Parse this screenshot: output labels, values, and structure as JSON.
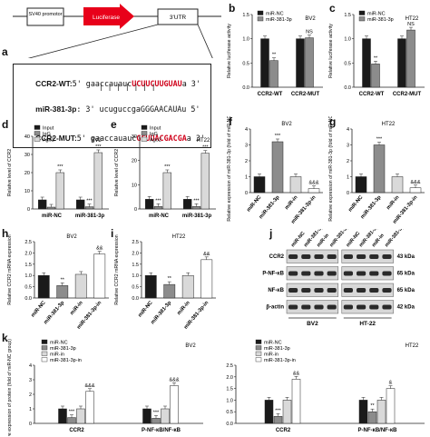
{
  "panels": {
    "a": "a",
    "b": "b",
    "c": "c",
    "d": "d",
    "e": "e",
    "f": "f",
    "g": "g",
    "h": "h",
    "i": "i",
    "j": "j",
    "k": "k"
  },
  "construct": {
    "promoter": "SV40 promotor",
    "gene": "Luciferase",
    "utr": "3'UTR",
    "rows": [
      {
        "label": "CCR2-WT:",
        "pre": "5' gaaccauauc",
        "highlight": "UCUUCUUGUAU",
        "post": "a 3'"
      },
      {
        "label": "miR-381-3p",
        "pre": ": 3' ucuguccgaGGGAACAUAu 5'",
        "highlight": "",
        "post": ""
      },
      {
        "label": "CCR2-MUT:",
        "pre": "5' gaaccauauc",
        "highlight": "GCUUACGACGA",
        "post": "a 3'"
      }
    ],
    "pair_bars": "| | | | | | |"
  },
  "colors": {
    "black": "#1a1a1a",
    "gray": "#8c8c8c",
    "lightgray": "#d9d9d9",
    "white": "#ffffff",
    "red": "#e8001a"
  },
  "chart_data": [
    {
      "id": "b",
      "type": "bar",
      "cell": "BV2",
      "ylabel": "Relative luciferase activity",
      "ylim": [
        0,
        1.5
      ],
      "ticks": [
        "0.0",
        "0.5",
        "1.0",
        "1.5"
      ],
      "categories": [
        "CCR2-WT",
        "CCR2-MUT"
      ],
      "series": [
        {
          "name": "miR-NC",
          "values": [
            1.0,
            1.0
          ]
        },
        {
          "name": "miR-381-3p",
          "values": [
            0.55,
            1.02
          ]
        }
      ],
      "annotations": [
        {
          "group": 0,
          "series": 1,
          "text": "**"
        },
        {
          "group": 1,
          "series": 1,
          "text": "NS"
        }
      ]
    },
    {
      "id": "c",
      "type": "bar",
      "cell": "HT22",
      "ylabel": "Relative luciferase activity",
      "ylim": [
        0,
        1.5
      ],
      "ticks": [
        "0.0",
        "0.5",
        "1.0",
        "1.5"
      ],
      "categories": [
        "CCR2-WT",
        "CCR2-MUT"
      ],
      "series": [
        {
          "name": "miR-NC",
          "values": [
            1.0,
            1.0
          ]
        },
        {
          "name": "miR-381-3p",
          "values": [
            0.48,
            1.18
          ]
        }
      ],
      "annotations": [
        {
          "group": 0,
          "series": 1,
          "text": "**"
        },
        {
          "group": 1,
          "series": 1,
          "text": "NS"
        }
      ]
    },
    {
      "id": "d",
      "type": "bar",
      "cell": "BV2",
      "ylabel": "Relative level of CCR2",
      "ylim": [
        0,
        40
      ],
      "ticks": [
        "0",
        "10",
        "20",
        "30",
        "40"
      ],
      "categories": [
        "miR-NC",
        "miR-381-3p"
      ],
      "series": [
        {
          "name": "Input",
          "values": [
            5,
            5
          ]
        },
        {
          "name": "IgG",
          "values": [
            1,
            1.2
          ]
        },
        {
          "name": "Ago2",
          "values": [
            20,
            31
          ]
        }
      ],
      "annotations": [
        {
          "group": 0,
          "series": 2,
          "text": "***"
        },
        {
          "group": 1,
          "series": 2,
          "text": "***"
        },
        {
          "group": 1,
          "series": 1,
          "text": "***"
        }
      ]
    },
    {
      "id": "e",
      "type": "bar",
      "cell": "HT22",
      "ylabel": "Relative level of CCR2",
      "ylim": [
        0,
        30
      ],
      "ticks": [
        "0",
        "10",
        "20",
        "30"
      ],
      "categories": [
        "miR-NC",
        "miR-381-3p"
      ],
      "series": [
        {
          "name": "Input",
          "values": [
            4,
            4
          ]
        },
        {
          "name": "IgG",
          "values": [
            1,
            1
          ]
        },
        {
          "name": "Ago2",
          "values": [
            15,
            23
          ]
        }
      ],
      "annotations": [
        {
          "group": 0,
          "series": 1,
          "text": "***"
        },
        {
          "group": 0,
          "series": 2,
          "text": "***"
        },
        {
          "group": 1,
          "series": 1,
          "text": "***"
        },
        {
          "group": 1,
          "series": 2,
          "text": "***"
        }
      ]
    },
    {
      "id": "f",
      "type": "bar",
      "cell": "BV2",
      "ylabel": "Relative expression of miR-381-3p (fold of miR-NC group)",
      "ylim": [
        0,
        4
      ],
      "ticks": [
        "0",
        "1",
        "2",
        "3",
        "4"
      ],
      "categories": [
        "miR-NC",
        "miR-381-3p",
        "miR-in",
        "miR-381-3p-in"
      ],
      "values": [
        1.0,
        3.2,
        1.0,
        0.25
      ],
      "annotations": [
        "",
        "***",
        "",
        "&&&"
      ]
    },
    {
      "id": "g",
      "type": "bar",
      "cell": "HT22",
      "ylabel": "Relative expression of miR-381-3p (fold of miR-NC group)",
      "ylim": [
        0,
        4
      ],
      "ticks": [
        "0",
        "1",
        "2",
        "3",
        "4"
      ],
      "categories": [
        "miR-NC",
        "miR-381-3p",
        "miR-in",
        "miR-381-3p-in"
      ],
      "values": [
        1.0,
        3.0,
        1.0,
        0.3
      ],
      "annotations": [
        "",
        "***",
        "",
        "&&&"
      ]
    },
    {
      "id": "h",
      "type": "bar",
      "cell": "BV2",
      "ylabel": "Relative CCR2 mRNA expression",
      "ylim": [
        0,
        2.5
      ],
      "ticks": [
        "0.0",
        "0.5",
        "1.0",
        "1.5",
        "2.0",
        "2.5"
      ],
      "categories": [
        "miR-NC",
        "miR-381-3p",
        "miR-in",
        "miR-381-3p-in"
      ],
      "values": [
        1.0,
        0.55,
        1.05,
        1.95
      ],
      "annotations": [
        "",
        "**",
        "",
        "&&"
      ]
    },
    {
      "id": "i",
      "type": "bar",
      "cell": "HT22",
      "ylabel": "Relative CCR2 mRNA expression",
      "ylim": [
        0,
        2.5
      ],
      "ticks": [
        "0.0",
        "0.5",
        "1.0",
        "1.5",
        "2.0",
        "2.5"
      ],
      "categories": [
        "miR-NC",
        "miR-381-3p",
        "miR-in",
        "miR-381-3p-in"
      ],
      "values": [
        1.0,
        0.6,
        1.0,
        1.7
      ],
      "annotations": [
        "",
        "**",
        "",
        "&&"
      ]
    },
    {
      "id": "k1",
      "type": "bar",
      "cell": "BV2",
      "ylabel": "Relative expression of protein (fold of miR-NC group)",
      "ylim": [
        0,
        4
      ],
      "ticks": [
        "0",
        "1",
        "2",
        "3",
        "4"
      ],
      "categories": [
        "CCR2",
        "P-NF-κB/NF-κB"
      ],
      "series": [
        {
          "name": "miR-NC",
          "values": [
            1.0,
            1.0
          ]
        },
        {
          "name": "miR-381-3p",
          "values": [
            0.4,
            0.35
          ]
        },
        {
          "name": "miR-in",
          "values": [
            1.0,
            1.0
          ]
        },
        {
          "name": "miR-381-3p-in",
          "values": [
            2.2,
            2.6
          ]
        }
      ],
      "annotations": [
        {
          "group": 0,
          "series": 1,
          "text": "***"
        },
        {
          "group": 0,
          "series": 3,
          "text": "&&&"
        },
        {
          "group": 1,
          "series": 1,
          "text": "***"
        },
        {
          "group": 1,
          "series": 3,
          "text": "&&&"
        }
      ]
    },
    {
      "id": "k2",
      "type": "bar",
      "cell": "HT22",
      "ylabel": "",
      "ylim": [
        0,
        2.5
      ],
      "ticks": [
        "0.0",
        "0.5",
        "1.0",
        "1.5",
        "2.0",
        "2.5"
      ],
      "categories": [
        "CCR2",
        "P-NF-κB/NF-κB"
      ],
      "series": [
        {
          "name": "miR-NC",
          "values": [
            1.0,
            1.0
          ]
        },
        {
          "name": "miR-381-3p",
          "values": [
            0.3,
            0.5
          ]
        },
        {
          "name": "miR-in",
          "values": [
            1.0,
            1.0
          ]
        },
        {
          "name": "miR-381-3p-in",
          "values": [
            1.9,
            1.5
          ]
        }
      ],
      "annotations": [
        {
          "group": 0,
          "series": 1,
          "text": "***"
        },
        {
          "group": 0,
          "series": 3,
          "text": "&&"
        },
        {
          "group": 1,
          "series": 1,
          "text": "**"
        },
        {
          "group": 1,
          "series": 3,
          "text": "&"
        }
      ]
    }
  ],
  "western": {
    "lanes": [
      "miR-NC",
      "miR-381-3p",
      "miR-in",
      "miR-381-3p-in",
      "miR-NC",
      "miR-381-3p",
      "miR-in",
      "miR-381-3p-in"
    ],
    "rows": [
      {
        "protein": "CCR2",
        "kda": "43 kDa"
      },
      {
        "protein": "P-NF-κB",
        "kda": "65 kDa"
      },
      {
        "protein": "NF-κB",
        "kda": "65 kDa"
      },
      {
        "protein": "β-actin",
        "kda": "42 kDa"
      }
    ],
    "groups": [
      "BV2",
      "HT-22"
    ]
  }
}
